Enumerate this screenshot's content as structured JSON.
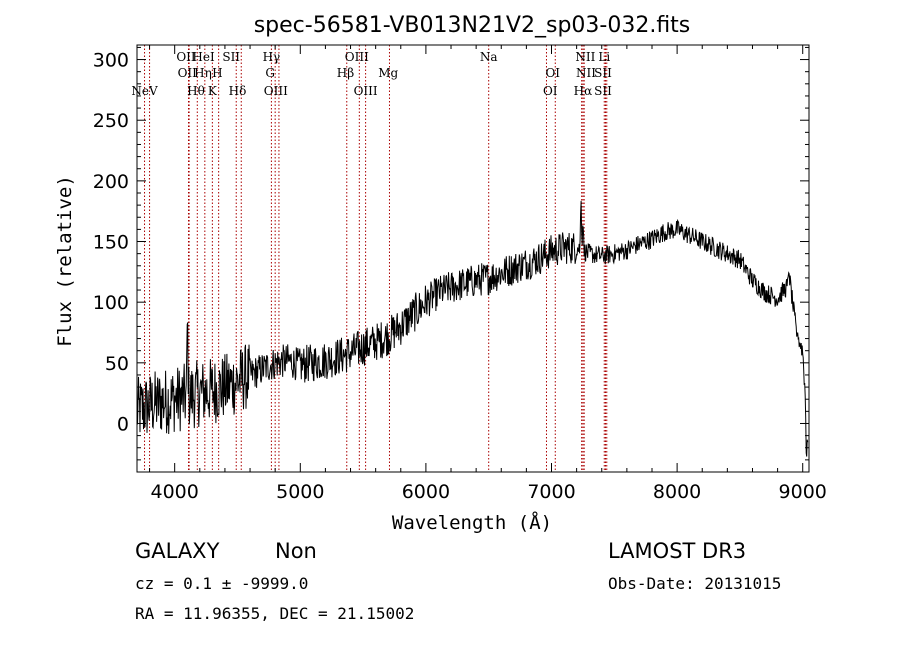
{
  "chart_data": {
    "type": "line",
    "title": "spec-56581-VB013N21V2_sp03-032.fits",
    "xlabel": "Wavelength (Å)",
    "ylabel": "Flux (relative)",
    "xlim": [
      3700,
      9050
    ],
    "ylim": [
      -40,
      312
    ],
    "xticks": [
      4000,
      5000,
      6000,
      7000,
      8000,
      9000
    ],
    "yticks": [
      0,
      50,
      100,
      150,
      200,
      250,
      300
    ],
    "xtick_labels": [
      "4000",
      "5000",
      "6000",
      "7000",
      "8000",
      "9000"
    ],
    "ytick_labels": [
      "0",
      "50",
      "100",
      "150",
      "200",
      "250",
      "300"
    ],
    "line_color": "#000000",
    "marker_color": "#aa0000",
    "spectrum_anchors": [
      [
        3700,
        10
      ],
      [
        3800,
        15
      ],
      [
        3900,
        18
      ],
      [
        4000,
        20
      ],
      [
        4100,
        22
      ],
      [
        4200,
        25
      ],
      [
        4300,
        27
      ],
      [
        4400,
        30
      ],
      [
        4500,
        35
      ],
      [
        4600,
        40
      ],
      [
        4700,
        45
      ],
      [
        4800,
        50
      ],
      [
        4900,
        52
      ],
      [
        5000,
        48
      ],
      [
        5100,
        50
      ],
      [
        5200,
        52
      ],
      [
        5300,
        55
      ],
      [
        5400,
        58
      ],
      [
        5500,
        63
      ],
      [
        5600,
        67
      ],
      [
        5700,
        72
      ],
      [
        5800,
        80
      ],
      [
        5900,
        90
      ],
      [
        6000,
        100
      ],
      [
        6100,
        108
      ],
      [
        6200,
        112
      ],
      [
        6300,
        115
      ],
      [
        6400,
        118
      ],
      [
        6500,
        120
      ],
      [
        6600,
        124
      ],
      [
        6700,
        128
      ],
      [
        6800,
        132
      ],
      [
        6900,
        136
      ],
      [
        7000,
        142
      ],
      [
        7100,
        145
      ],
      [
        7200,
        145
      ],
      [
        7300,
        140
      ],
      [
        7400,
        138
      ],
      [
        7500,
        140
      ],
      [
        7600,
        143
      ],
      [
        7700,
        148
      ],
      [
        7800,
        152
      ],
      [
        7900,
        158
      ],
      [
        8000,
        160
      ],
      [
        8100,
        155
      ],
      [
        8200,
        150
      ],
      [
        8300,
        145
      ],
      [
        8400,
        140
      ],
      [
        8500,
        135
      ],
      [
        8600,
        118
      ],
      [
        8700,
        108
      ],
      [
        8800,
        103
      ],
      [
        8850,
        110
      ],
      [
        8900,
        115
      ],
      [
        8950,
        75
      ],
      [
        9000,
        60
      ],
      [
        9050,
        -30
      ]
    ],
    "spectrum_features": [
      [
        4102,
        100
      ],
      [
        7235,
        190
      ],
      [
        7250,
        170
      ],
      [
        8890,
        128
      ],
      [
        8960,
        75
      ],
      [
        9030,
        -35
      ]
    ],
    "lines": [
      {
        "label": "NeV",
        "wave": 3760,
        "row": 3
      },
      {
        "label": "OII",
        "wave": 4090,
        "row": 0
      },
      {
        "label": "OII",
        "wave": 4100,
        "row": 1
      },
      {
        "label": "Hθ",
        "wave": 4170,
        "row": 2
      },
      {
        "label": "HeI",
        "wave": 4230,
        "row": 0
      },
      {
        "label": "Hη",
        "wave": 4225,
        "row": 1
      },
      {
        "label": "K",
        "wave": 4300,
        "row": 2
      },
      {
        "label": "H",
        "wave": 4340,
        "row": 1
      },
      {
        "label": "SII",
        "wave": 4450,
        "row": 0
      },
      {
        "label": "Hδ",
        "wave": 4500,
        "row": 2
      },
      {
        "label": "Hγ",
        "wave": 4770,
        "row": 0
      },
      {
        "label": "G",
        "wave": 4760,
        "row": 1
      },
      {
        "label": "OIII",
        "wave": 4805,
        "row": 2
      },
      {
        "label": "OIII",
        "wave": 5450,
        "row": 0
      },
      {
        "label": "Hβ",
        "wave": 5360,
        "row": 1
      },
      {
        "label": "OIII",
        "wave": 5520,
        "row": 2
      },
      {
        "label": "Mg",
        "wave": 5700,
        "row": 1
      },
      {
        "label": "Na",
        "wave": 6500,
        "row": 0
      },
      {
        "label": "OI",
        "wave": 7010,
        "row": 1
      },
      {
        "label": "OI",
        "wave": 6990,
        "row": 2
      },
      {
        "label": "NII",
        "wave": 7270,
        "row": 0
      },
      {
        "label": "NII",
        "wave": 7275,
        "row": 1
      },
      {
        "label": "Hα",
        "wave": 7250,
        "row": 2
      },
      {
        "label": "Li",
        "wave": 7420,
        "row": 0
      },
      {
        "label": "SII",
        "wave": 7410,
        "row": 1
      },
      {
        "label": "SII",
        "wave": 7410,
        "row": 2
      }
    ],
    "marker_waves": [
      3760,
      3800,
      4110,
      4115,
      4180,
      4240,
      4300,
      4350,
      4490,
      4530,
      4770,
      4800,
      4830,
      5370,
      5470,
      5520,
      5710,
      6500,
      6960,
      7030,
      7240,
      7250,
      7260,
      7420,
      7430,
      7440
    ]
  },
  "info": {
    "class": "GALAXY",
    "subclass": "Non",
    "survey": "LAMOST DR3",
    "cz": "cz = 0.1 ± -9999.0",
    "obsdate": "Obs-Date: 20131015",
    "radec": "RA =  11.96355, DEC =  21.15002"
  }
}
